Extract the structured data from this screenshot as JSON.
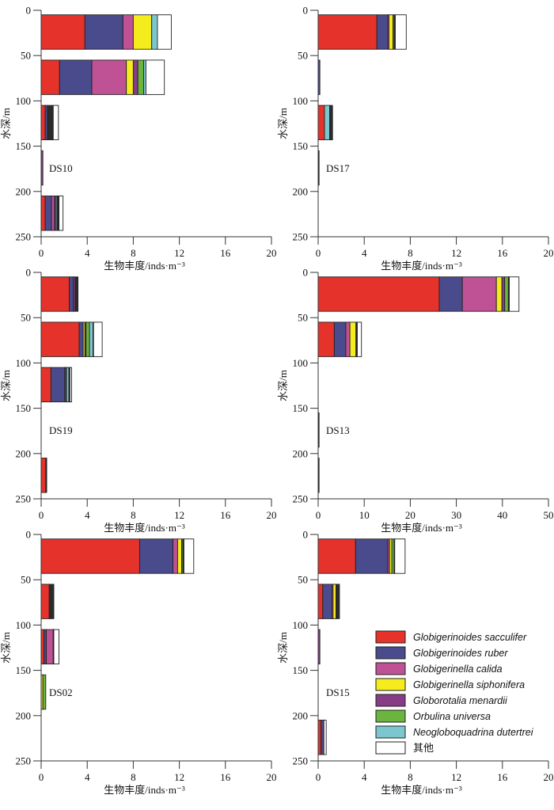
{
  "chart_data": {
    "type": "bar",
    "orientation": "horizontal-stacked",
    "xlabel": "生物丰度/inds·m⁻³",
    "ylabel": "水深/m",
    "y_ticks": [
      "0",
      "50",
      "100",
      "150",
      "200",
      "250"
    ],
    "ylim": [
      0,
      250
    ],
    "legend_placement": "inside-bottom-right (DS15 panel)",
    "species": [
      {
        "name": "Globigerinoides sacculifer",
        "color": "#e5322b",
        "italic": true
      },
      {
        "name": "Globigerinoides ruber",
        "color": "#4a4b8c",
        "italic": true
      },
      {
        "name": "Globigerinella calida",
        "color": "#bf5195",
        "italic": true
      },
      {
        "name": "Globigerinella siphonifera",
        "color": "#f5ec1e",
        "italic": true
      },
      {
        "name": "Globorotalia menardii",
        "color": "#863d86",
        "italic": true
      },
      {
        "name": "Orbulina universa",
        "color": "#6bb43e",
        "italic": true
      },
      {
        "name": "Neogloboquadrina dutertrei",
        "color": "#7cc7cf",
        "italic": true
      },
      {
        "name": "其他",
        "color": "#ffffff",
        "italic": false
      }
    ],
    "other_dark_color": "#2b2b2b",
    "depth_layers_m": [
      [
        5,
        43
      ],
      [
        55,
        93
      ],
      [
        105,
        143
      ],
      [
        155,
        193
      ],
      [
        205,
        243
      ]
    ],
    "panels": [
      {
        "station": "DS10",
        "xlim": [
          0,
          20
        ],
        "x_ticks": [
          "0",
          "4",
          "8",
          "12",
          "16",
          "20"
        ],
        "layers": [
          {
            "depth": "0-50",
            "segments": [
              3.8,
              3.3,
              0.9,
              1.6,
              0,
              0,
              0.5,
              1.2
            ]
          },
          {
            "depth": "50-100",
            "segments": [
              1.6,
              2.8,
              3.0,
              0.6,
              0.4,
              0.5,
              0.2,
              1.6
            ]
          },
          {
            "depth": "100-150",
            "segments": [
              0.35,
              0.2,
              0,
              0,
              0,
              0,
              0,
              0.45
            ],
            "dark": 0.5
          },
          {
            "depth": "150-200",
            "segments": [
              0,
              0,
              0,
              0,
              0.15,
              0,
              0,
              0
            ]
          },
          {
            "depth": "200-250",
            "segments": [
              0.35,
              0.55,
              0.25,
              0,
              0.15,
              0,
              0.1,
              0.35
            ],
            "dark": 0.15
          }
        ]
      },
      {
        "station": "DS17",
        "xlim": [
          0,
          20
        ],
        "x_ticks": [
          "0",
          "4",
          "8",
          "12",
          "16",
          "20"
        ],
        "layers": [
          {
            "depth": "0-50",
            "segments": [
              5.1,
              0.95,
              0.1,
              0.35,
              0,
              0.1,
              0,
              0.95
            ],
            "dark": 0.1
          },
          {
            "depth": "50-100",
            "segments": [
              0,
              0.15,
              0,
              0,
              0,
              0,
              0,
              0
            ]
          },
          {
            "depth": "100-150",
            "segments": [
              0.55,
              0,
              0,
              0,
              0,
              0,
              0.45,
              0
            ],
            "dark": 0.25
          },
          {
            "depth": "150-200",
            "segments": [
              0,
              0,
              0,
              0,
              0,
              0,
              0,
              0
            ],
            "dark": 0.05
          },
          {
            "depth": "200-250",
            "segments": [
              0,
              0,
              0,
              0,
              0,
              0,
              0,
              0
            ]
          }
        ]
      },
      {
        "station": "DS19",
        "xlim": [
          0,
          20
        ],
        "x_ticks": [
          "0",
          "4",
          "8",
          "12",
          "16",
          "20"
        ],
        "layers": [
          {
            "depth": "0-50",
            "segments": [
              2.45,
              0.35,
              0,
              0,
              0.15,
              0,
              0,
              0
            ],
            "dark": 0.25
          },
          {
            "depth": "50-100",
            "segments": [
              3.3,
              0.35,
              0,
              0.15,
              0.1,
              0.3,
              0.3,
              0.75
            ],
            "dark": 0.05
          },
          {
            "depth": "100-150",
            "segments": [
              0.85,
              1.2,
              0.1,
              0,
              0.05,
              0,
              0.2,
              0.15
            ],
            "dark": 0.1
          },
          {
            "depth": "150-200",
            "segments": [
              0,
              0,
              0,
              0,
              0,
              0,
              0,
              0
            ]
          },
          {
            "depth": "200-250",
            "segments": [
              0.4,
              0,
              0,
              0,
              0,
              0,
              0,
              0
            ],
            "dark": 0.08
          }
        ]
      },
      {
        "station": "DS13",
        "xlim": [
          0,
          50
        ],
        "x_ticks": [
          "0",
          "10",
          "20",
          "30",
          "40",
          "50"
        ],
        "layers": [
          {
            "depth": "0-50",
            "segments": [
              26.3,
              5.0,
              7.4,
              1.2,
              0.6,
              0.8,
              0,
              2.1
            ],
            "dark": 0.2
          },
          {
            "depth": "50-100",
            "segments": [
              3.5,
              2.5,
              0.9,
              1.3,
              0,
              0,
              0,
              0.9
            ],
            "dark": 0.3
          },
          {
            "depth": "100-150",
            "segments": [
              0,
              0,
              0,
              0,
              0,
              0,
              0,
              0
            ]
          },
          {
            "depth": "150-200",
            "segments": [
              0,
              0,
              0,
              0,
              0,
              0,
              0,
              0
            ],
            "dark": 0.2
          },
          {
            "depth": "200-250",
            "segments": [
              0,
              0,
              0,
              0,
              0,
              0,
              0,
              0
            ],
            "dark": 0.1
          }
        ]
      },
      {
        "station": "DS02",
        "xlim": [
          0,
          20
        ],
        "x_ticks": [
          "0",
          "4",
          "8",
          "12",
          "16",
          "20"
        ],
        "layers": [
          {
            "depth": "0-50",
            "segments": [
              8.55,
              2.9,
              0.4,
              0.35,
              0,
              0.1,
              0,
              0.85
            ],
            "dark": 0.1
          },
          {
            "depth": "50-100",
            "segments": [
              0.7,
              0,
              0,
              0,
              0,
              0,
              0,
              0
            ],
            "dark": 0.4
          },
          {
            "depth": "100-150",
            "segments": [
              0.25,
              0.2,
              0.6,
              0,
              0,
              0,
              0,
              0.45
            ],
            "dark": 0.05
          },
          {
            "depth": "150-200",
            "segments": [
              0,
              0,
              0,
              0.15,
              0,
              0.25,
              0,
              0
            ]
          },
          {
            "depth": "200-250",
            "segments": [
              0,
              0,
              0,
              0,
              0,
              0,
              0,
              0
            ]
          }
        ]
      },
      {
        "station": "DS15",
        "xlim": [
          0,
          20
        ],
        "x_ticks": [
          "0",
          "4",
          "8",
          "12",
          "16",
          "20"
        ],
        "layers": [
          {
            "depth": "0-50",
            "segments": [
              3.25,
              2.8,
              0.15,
              0.2,
              0,
              0.2,
              0,
              0.9
            ],
            "dark": 0.05
          },
          {
            "depth": "50-100",
            "segments": [
              0.4,
              0.8,
              0.1,
              0.25,
              0,
              0,
              0,
              0
            ],
            "dark": 0.3
          },
          {
            "depth": "100-150",
            "segments": [
              0,
              0,
              0,
              0,
              0.15,
              0,
              0,
              0
            ]
          },
          {
            "depth": "150-200",
            "segments": [
              0,
              0,
              0,
              0,
              0,
              0,
              0,
              0
            ]
          },
          {
            "depth": "200-250",
            "segments": [
              0.25,
              0.25,
              0,
              0,
              0,
              0,
              0,
              0.2
            ]
          }
        ]
      }
    ]
  }
}
